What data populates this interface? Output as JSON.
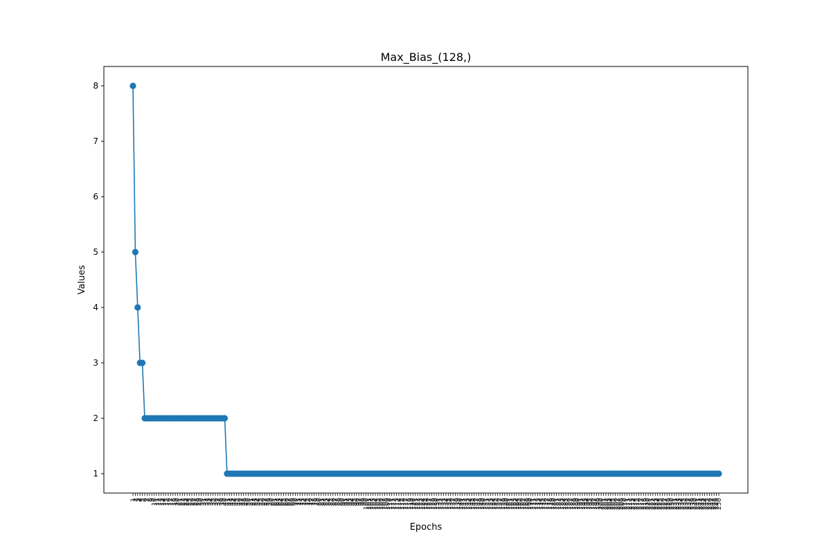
{
  "chart_data": {
    "type": "line",
    "title": "Max_Bias_(128,)",
    "xlabel": "Epochs",
    "ylabel": "Values",
    "marker": "circle",
    "color": "#1f77b4",
    "grid": false,
    "legend": "none",
    "x_start": 1,
    "x_end": 250,
    "ylim": [
      0.65,
      8.35
    ],
    "y_ticks": [
      1,
      2,
      3,
      4,
      5,
      6,
      7,
      8
    ],
    "segments": [
      {
        "from_epoch": 1,
        "to_epoch": 1,
        "value": 8
      },
      {
        "from_epoch": 2,
        "to_epoch": 2,
        "value": 5
      },
      {
        "from_epoch": 3,
        "to_epoch": 3,
        "value": 4
      },
      {
        "from_epoch": 4,
        "to_epoch": 5,
        "value": 3
      },
      {
        "from_epoch": 6,
        "to_epoch": 40,
        "value": 2
      },
      {
        "from_epoch": 41,
        "to_epoch": 250,
        "value": 1
      }
    ]
  }
}
